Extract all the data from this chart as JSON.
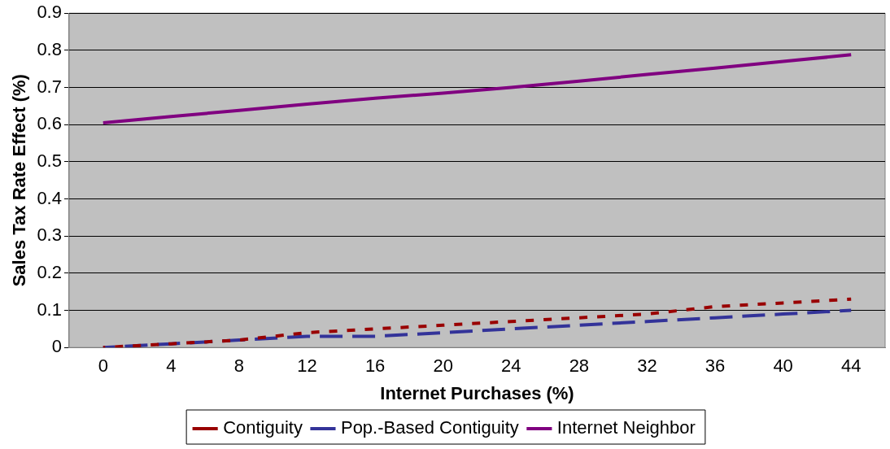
{
  "chart_data": {
    "type": "line",
    "xlabel": "Internet Purchases (%)",
    "ylabel": "Sales Tax Rate Effect (%)",
    "categories": [
      "0",
      "4",
      "8",
      "12",
      "16",
      "20",
      "24",
      "28",
      "32",
      "36",
      "40",
      "44"
    ],
    "ylim": [
      0,
      0.9
    ],
    "yticks": [
      0,
      0.1,
      0.2,
      0.3,
      0.4,
      0.5,
      0.6,
      0.7,
      0.8,
      0.9
    ],
    "grid": "y",
    "legend": "bottom",
    "marker": "none",
    "series": [
      {
        "name": "Contiguity",
        "color": "#990000",
        "line_style": "dotted",
        "values": [
          0,
          0.01,
          0.02,
          0.04,
          0.05,
          0.06,
          0.07,
          0.08,
          0.09,
          0.11,
          0.12,
          0.13
        ]
      },
      {
        "name": "Pop.-Based Contiguity",
        "color": "#333399",
        "line_style": "dashed",
        "values": [
          0,
          0.01,
          0.02,
          0.03,
          0.03,
          0.04,
          0.05,
          0.06,
          0.07,
          0.08,
          0.09,
          0.1
        ]
      },
      {
        "name": "Internet Neighbor",
        "color": "#800080",
        "line_style": "solid",
        "values": [
          0.605,
          0.622,
          0.638,
          0.655,
          0.671,
          0.685,
          0.7,
          0.717,
          0.735,
          0.752,
          0.77,
          0.788
        ]
      }
    ]
  }
}
